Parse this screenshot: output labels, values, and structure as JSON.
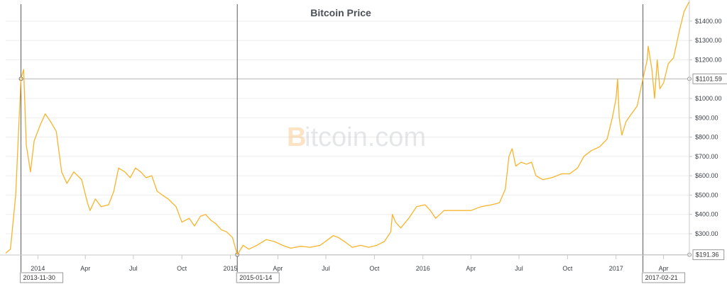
{
  "chart_data": {
    "type": "line",
    "title": "Bitcoin Price",
    "watermark": {
      "brand_symbol": "B",
      "text": "itcoin.com"
    },
    "x_ticks": [
      "2014",
      "Apr",
      "Jul",
      "Oct",
      "2015",
      "Apr",
      "Jul",
      "Oct",
      "2016",
      "Apr",
      "Jul",
      "Oct",
      "2017",
      "Apr"
    ],
    "y_ticks": [
      "$300.00",
      "$400.00",
      "$500.00",
      "$600.00",
      "$700.00",
      "$800.00",
      "$900.00",
      "$1000.00",
      "$1100.00",
      "$1200.00",
      "$1300.00",
      "$1400.00"
    ],
    "ylim": [
      190,
      1480
    ],
    "xlim": [
      "2013-11-01",
      "2017-05-20"
    ],
    "line_color": "#f7b42c",
    "crosshairs": [
      {
        "date": "2013-11-30",
        "price": 1101.59,
        "date_label": "2013-11-30",
        "price_label": "$1101.59"
      },
      {
        "date": "2015-01-14",
        "price": 191.36,
        "date_label": "2015-01-14",
        "price_label": "$191.36"
      },
      {
        "date": "2017-02-21",
        "date_label": "2017-02-21"
      }
    ],
    "series": [
      {
        "x": [
          "2013-11-01",
          "2013-11-10",
          "2013-11-20",
          "2013-11-30",
          "2013-12-05",
          "2013-12-10",
          "2013-12-18",
          "2013-12-25",
          "2014-01-05",
          "2014-01-15",
          "2014-01-25",
          "2014-02-05",
          "2014-02-15",
          "2014-02-25",
          "2014-03-10",
          "2014-03-25",
          "2014-04-05",
          "2014-04-10",
          "2014-04-20",
          "2014-05-01",
          "2014-05-15",
          "2014-05-25",
          "2014-06-03",
          "2014-06-15",
          "2014-06-25",
          "2014-07-05",
          "2014-07-15",
          "2014-07-25",
          "2014-08-05",
          "2014-08-15",
          "2014-08-25",
          "2014-09-05",
          "2014-09-20",
          "2014-10-01",
          "2014-10-15",
          "2014-10-25",
          "2014-11-05",
          "2014-11-15",
          "2014-11-25",
          "2014-12-05",
          "2014-12-15",
          "2014-12-25",
          "2015-01-05",
          "2015-01-14",
          "2015-01-25",
          "2015-02-05",
          "2015-02-20",
          "2015-03-10",
          "2015-03-25",
          "2015-04-10",
          "2015-04-25",
          "2015-05-15",
          "2015-06-01",
          "2015-06-20",
          "2015-07-05",
          "2015-07-15",
          "2015-07-25",
          "2015-08-05",
          "2015-08-20",
          "2015-09-05",
          "2015-09-20",
          "2015-10-05",
          "2015-10-20",
          "2015-11-01",
          "2015-11-04",
          "2015-11-10",
          "2015-11-20",
          "2015-12-05",
          "2015-12-20",
          "2016-01-05",
          "2016-01-15",
          "2016-01-25",
          "2016-02-10",
          "2016-02-25",
          "2016-03-15",
          "2016-04-01",
          "2016-04-20",
          "2016-05-10",
          "2016-05-25",
          "2016-06-05",
          "2016-06-12",
          "2016-06-18",
          "2016-06-25",
          "2016-07-05",
          "2016-07-15",
          "2016-07-25",
          "2016-08-02",
          "2016-08-15",
          "2016-09-01",
          "2016-09-20",
          "2016-10-05",
          "2016-10-20",
          "2016-11-01",
          "2016-11-15",
          "2016-12-01",
          "2016-12-15",
          "2016-12-25",
          "2017-01-01",
          "2017-01-04",
          "2017-01-07",
          "2017-01-12",
          "2017-01-20",
          "2017-01-30",
          "2017-02-10",
          "2017-02-21",
          "2017-03-01",
          "2017-03-03",
          "2017-03-10",
          "2017-03-15",
          "2017-03-20",
          "2017-03-25",
          "2017-04-01",
          "2017-04-10",
          "2017-04-20",
          "2017-05-01",
          "2017-05-10",
          "2017-05-20"
        ],
        "y": [
          200,
          220,
          500,
          1101.59,
          1150,
          760,
          620,
          780,
          860,
          920,
          880,
          830,
          620,
          560,
          620,
          580,
          460,
          420,
          480,
          440,
          450,
          520,
          640,
          620,
          590,
          640,
          620,
          590,
          600,
          520,
          500,
          480,
          440,
          360,
          380,
          340,
          390,
          400,
          370,
          350,
          320,
          310,
          280,
          191.36,
          240,
          220,
          240,
          270,
          260,
          240,
          225,
          235,
          230,
          240,
          270,
          290,
          280,
          260,
          230,
          240,
          230,
          240,
          260,
          310,
          400,
          360,
          330,
          380,
          440,
          450,
          420,
          380,
          420,
          420,
          420,
          420,
          440,
          450,
          460,
          530,
          700,
          740,
          650,
          670,
          660,
          670,
          600,
          580,
          590,
          610,
          610,
          640,
          700,
          730,
          750,
          790,
          900,
          1000,
          1100,
          900,
          810,
          880,
          920,
          960,
          1101.59,
          1200,
          1270,
          1150,
          1000,
          1200,
          1050,
          1080,
          1180,
          1210,
          1350,
          1450,
          1600
        ]
      }
    ]
  }
}
